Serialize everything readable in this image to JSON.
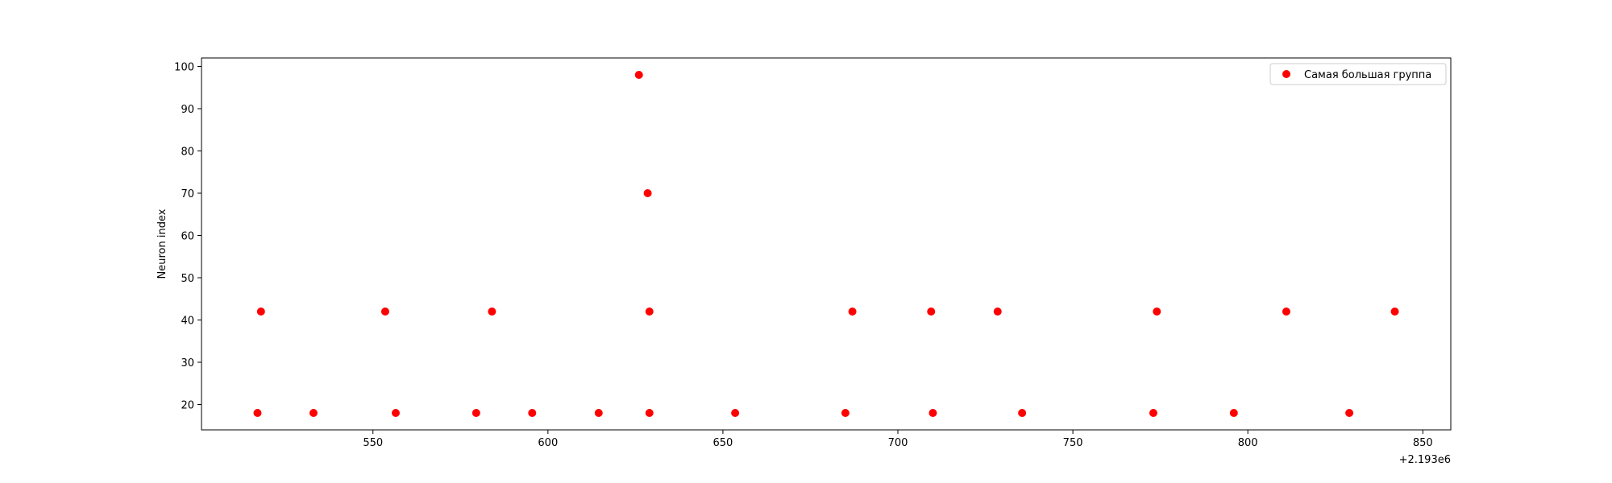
{
  "chart_data": {
    "type": "scatter",
    "xlabel": "",
    "ylabel": "Neuron index",
    "x_offset_text": "+2.193e6",
    "xlim": [
      2193501,
      2193858
    ],
    "ylim": [
      14,
      102
    ],
    "x_ticks": [
      550,
      600,
      650,
      700,
      750,
      800,
      850
    ],
    "y_ticks": [
      20,
      30,
      40,
      50,
      60,
      70,
      80,
      90,
      100
    ],
    "grid": false,
    "legend_position": "top-right",
    "series": [
      {
        "name": "Самая большая группа",
        "color": "#ff0000",
        "points": [
          [
            2193517,
            18
          ],
          [
            2193518,
            42
          ],
          [
            2193533,
            18
          ],
          [
            2193553.5,
            42
          ],
          [
            2193556.5,
            18
          ],
          [
            2193579.5,
            18
          ],
          [
            2193584,
            42
          ],
          [
            2193595.5,
            18
          ],
          [
            2193614.5,
            18
          ],
          [
            2193626,
            98
          ],
          [
            2193628.5,
            70
          ],
          [
            2193629,
            42
          ],
          [
            2193629,
            18
          ],
          [
            2193653.5,
            18
          ],
          [
            2193685,
            18
          ],
          [
            2193687,
            42
          ],
          [
            2193709.5,
            42
          ],
          [
            2193710,
            18
          ],
          [
            2193728.5,
            42
          ],
          [
            2193735.5,
            18
          ],
          [
            2193773,
            18
          ],
          [
            2193774,
            42
          ],
          [
            2193796,
            18
          ],
          [
            2193811,
            42
          ],
          [
            2193829,
            18
          ],
          [
            2193842,
            42
          ]
        ]
      }
    ]
  }
}
